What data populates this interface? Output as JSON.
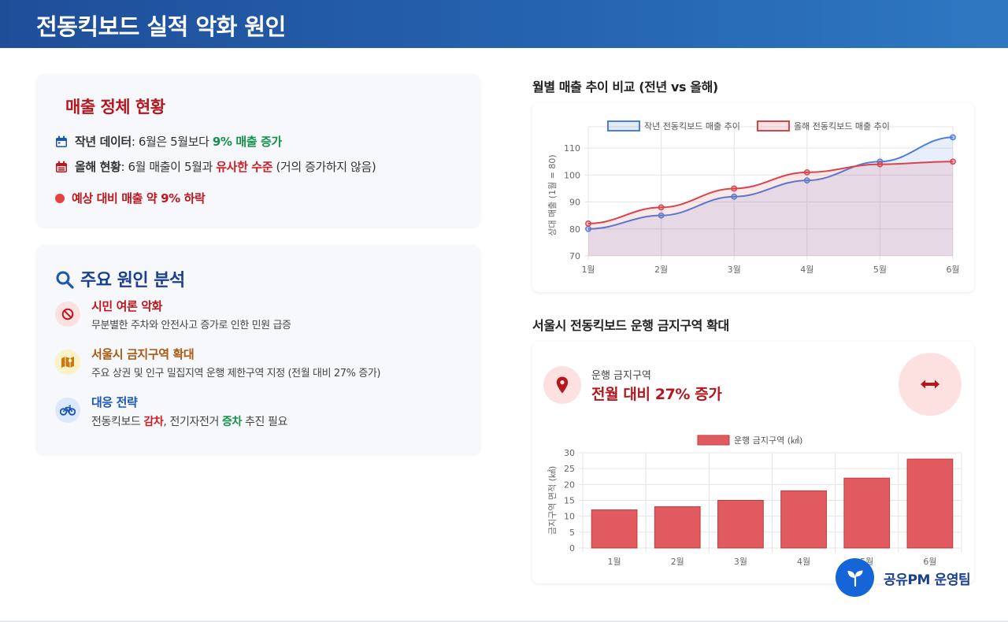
{
  "header": {
    "title": "전동킥보드 실적 악화 원인"
  },
  "sales_status": {
    "title": "매출 정체 현황",
    "last_year": {
      "label": "작년 데이터",
      "text": ": 6월은 5월보다 ",
      "highlight": "9% 매출 증가"
    },
    "this_year": {
      "label": "올해 현황",
      "text": ": 6월 매출이 5월과 ",
      "highlight": "유사한 수준",
      "suffix": " (거의 증가하지 않음)"
    },
    "alert": "예상 대비 매출 약 9% 하락"
  },
  "causes": {
    "title": "주요 원인 분석",
    "items": [
      {
        "title": "시민 여론 악화",
        "desc": "무분별한 주차와 안전사고 증가로 인한 민원 급증"
      },
      {
        "title": "서울시 금지구역 확대",
        "desc": "주요 상권 및 인구 밀집지역 운행 제한구역 지정 (전월 대비 27% 증가)"
      },
      {
        "title": "대응 전략",
        "desc_pre": "전동킥보드 ",
        "desc_a": "감차",
        "desc_mid": ", 전기자전거 ",
        "desc_b": "증차",
        "desc_post": " 추진 필요"
      }
    ]
  },
  "line_section": {
    "title": "월별 매출 추이 비교 (전년 vs 올해)"
  },
  "zone_section": {
    "title": "서울시 전동킥보드 운행 금지구역 확대",
    "stat_label": "운행 금지구역",
    "stat_value": "전월 대비 27% 증가"
  },
  "chart_data": [
    {
      "type": "line",
      "categories": [
        "1월",
        "2월",
        "3월",
        "4월",
        "5월",
        "6월"
      ],
      "series": [
        {
          "name": "작년 전동킥보드 매출 추이",
          "values": [
            80,
            85,
            92,
            98,
            105,
            114
          ],
          "color": "#4a7fe0"
        },
        {
          "name": "올해 전동킥보드 매출 추이",
          "values": [
            82,
            88,
            95,
            101,
            104,
            105
          ],
          "color": "#d9444a"
        }
      ],
      "ylabel": "상대 매출 (1월 = 80)",
      "ylim": [
        70,
        115
      ],
      "yticks": [
        70,
        80,
        90,
        100,
        110
      ],
      "grid": true,
      "legend": "top"
    },
    {
      "type": "bar",
      "categories": [
        "1월",
        "2월",
        "3월",
        "4월",
        "5월",
        "6월"
      ],
      "series": [
        {
          "name": "운행 금지구역 (㎢)",
          "values": [
            12,
            13,
            15,
            18,
            22,
            28
          ],
          "color": "#e05a5f"
        }
      ],
      "ylabel": "금지구역 면적 (㎢)",
      "ylim": [
        0,
        30
      ],
      "yticks": [
        0,
        5,
        10,
        15,
        20,
        25,
        30
      ],
      "grid": true,
      "legend": "top"
    }
  ],
  "team": {
    "name": "공유PM 운영팀"
  },
  "icons": {
    "calendar_last": "calendar-icon",
    "calendar_this": "calendar-icon",
    "alert": "red-dot-icon",
    "search": "search-icon",
    "ban": "ban-icon",
    "map": "map-icon",
    "bike": "bicycle-icon",
    "pin": "map-pin-icon",
    "arrows": "arrows-horizontal-icon",
    "seedling": "seedling-icon"
  },
  "colors": {
    "header": "#2563b0",
    "red": "#b5171f",
    "green": "#14924a",
    "blue": "#1a3f8f"
  }
}
